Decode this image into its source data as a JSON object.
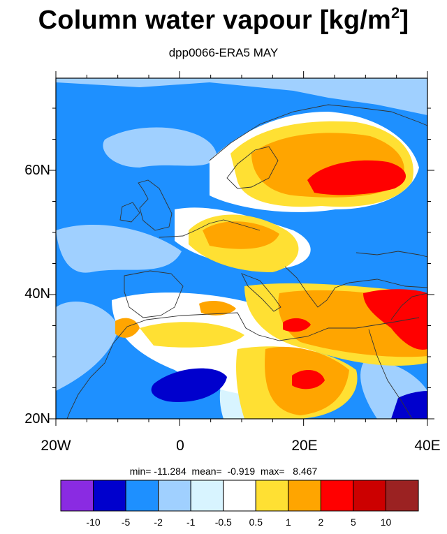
{
  "title": {
    "main": "Column water vapour [kg/m",
    "sup": "2",
    "close": "]"
  },
  "subtitle": "dpp0066-ERA5 MAY",
  "axes": {
    "y_labels": [
      "60N",
      "40N",
      "20N"
    ],
    "x_labels": [
      "20W",
      "0",
      "20E",
      "40E"
    ],
    "lon_range": [
      -20,
      40
    ],
    "lat_range": [
      20,
      75
    ]
  },
  "stats_text": "min= -11.284  mean=  -0.919  max=   8.467",
  "colorbar": {
    "colors": [
      "#8a2be2",
      "#0000cd",
      "#1e90ff",
      "#a0d0ff",
      "#d8f4ff",
      "#ffffff",
      "#ffe033",
      "#ffa500",
      "#ff0000",
      "#cc0000",
      "#9b2222"
    ],
    "labels": [
      "-10",
      "-5",
      "-2",
      "-1",
      "-0.5",
      "0.5",
      "1",
      "2",
      "5",
      "10"
    ]
  },
  "colors": {
    "background_field": "#1e90ff",
    "coastline": "#333333",
    "frame": "#000000"
  }
}
